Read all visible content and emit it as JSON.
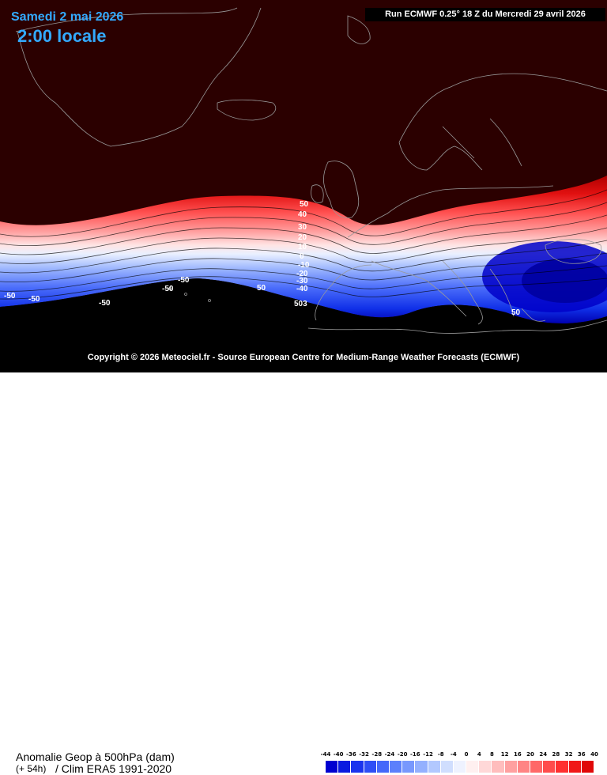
{
  "header": {
    "date": "Samedi 2 mai 2026",
    "time": "2:00 locale",
    "run": "Run ECMWF 0.25° 18 Z du Mercredi 29 avril 2026"
  },
  "map": {
    "copyright": "Copyright © 2026 Meteociel.fr - Source European Centre for Medium-Range Weather Forecasts (ECMWF)",
    "contour_labels": [
      "50",
      "40",
      "30",
      "20",
      "10",
      "0",
      "-10",
      "-20",
      "-30",
      "-40",
      "-50",
      "-50",
      "-50",
      "-50",
      "-50",
      "50",
      "503",
      "50"
    ]
  },
  "footer": {
    "title": "Anomalie Geop à 500hPa (dam)",
    "lead": "(+ 54h)",
    "clim": "/ Clim ERA5 1991-2020"
  },
  "colorbar": {
    "ticks": [
      "-44",
      "-40",
      "-36",
      "-32",
      "-28",
      "-24",
      "-20",
      "-16",
      "-12",
      "-8",
      "-4",
      "0",
      "4",
      "8",
      "12",
      "16",
      "20",
      "24",
      "28",
      "32",
      "36",
      "40"
    ],
    "colors": [
      "#0000d0",
      "#0a1ae0",
      "#1a34ee",
      "#2e4ef6",
      "#4468fa",
      "#5c80fc",
      "#7898fd",
      "#94b0fe",
      "#b2c8fe",
      "#d0defe",
      "#eef2ff",
      "#fff0f0",
      "#ffd8d8",
      "#ffbdbd",
      "#ffa0a0",
      "#ff8484",
      "#ff6868",
      "#ff4c4c",
      "#ff3030",
      "#f01818",
      "#e00808"
    ]
  }
}
